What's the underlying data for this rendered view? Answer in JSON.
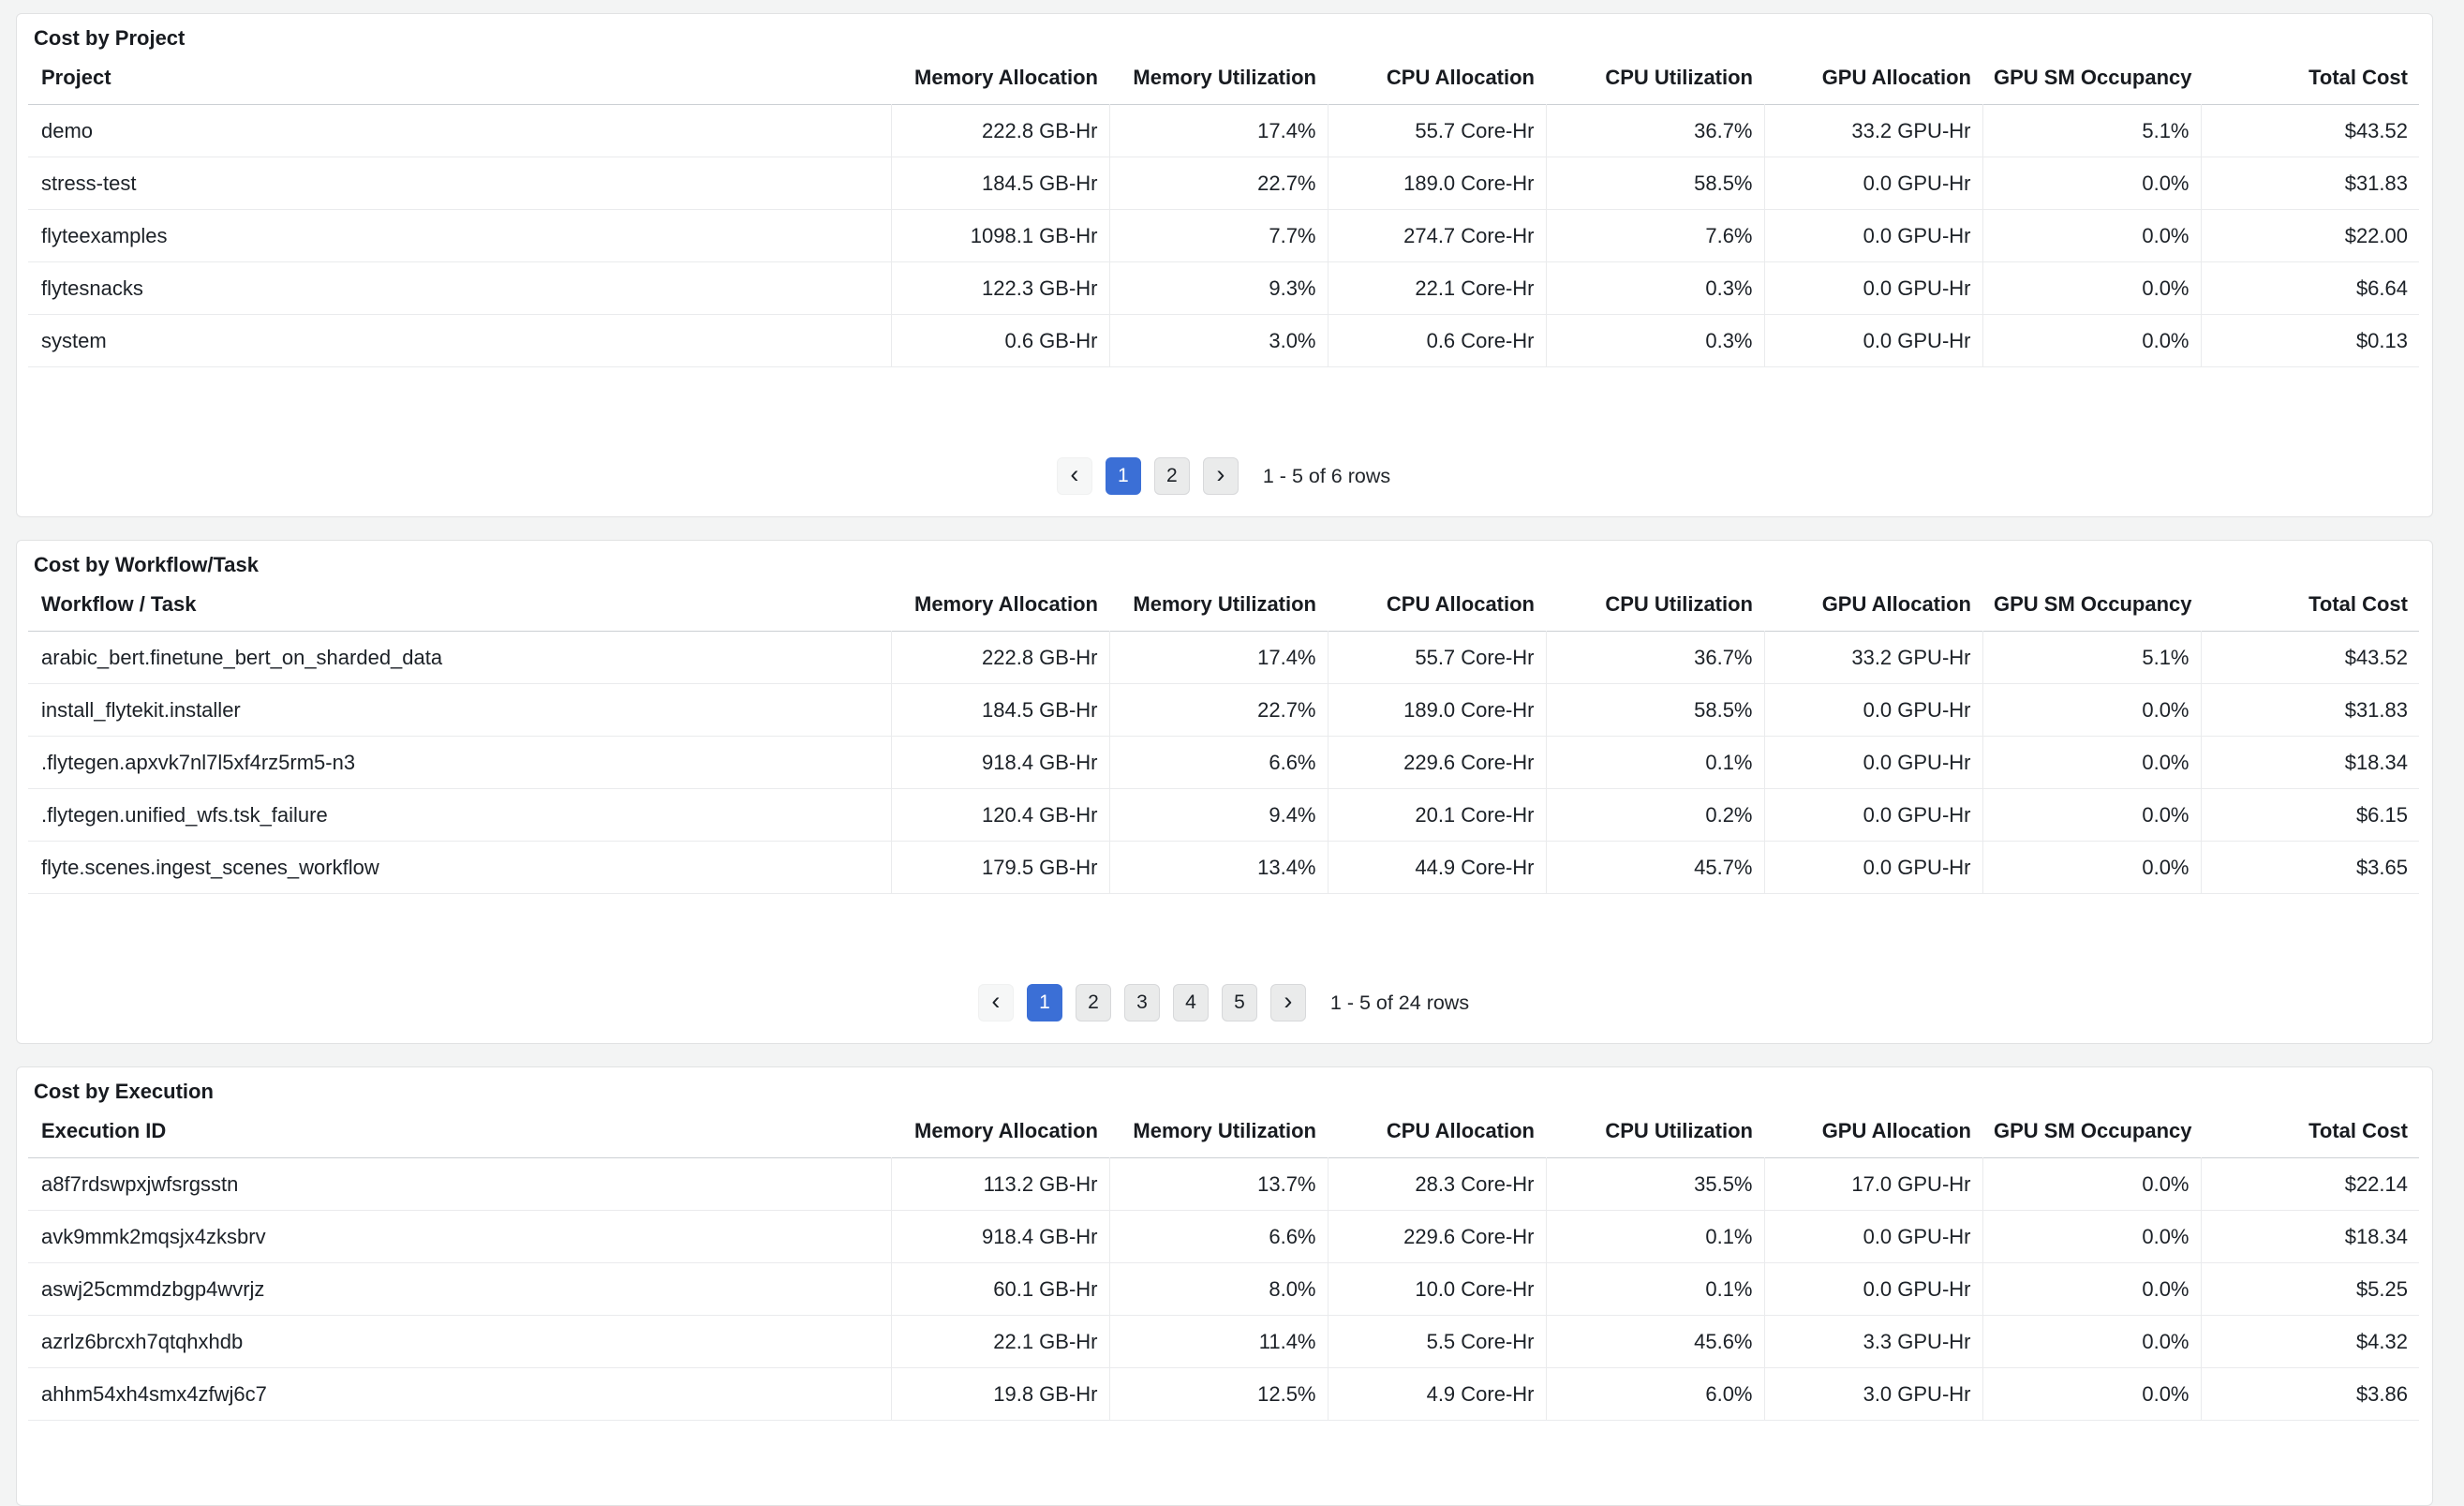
{
  "icons": {
    "prev": "‹",
    "next": "›"
  },
  "colors": {
    "page_background": "#f3f4f4",
    "card_background": "#ffffff",
    "card_border": "#e1e2e3",
    "row_border": "#eaebed",
    "header_border": "#ccd0d4",
    "active_page": "#3b6fd6",
    "text": "#1c2127"
  },
  "sections": [
    {
      "title": "Cost by Project",
      "columns": [
        "Project",
        "Memory Allocation",
        "Memory Utilization",
        "CPU Allocation",
        "CPU Utilization",
        "GPU Allocation",
        "GPU SM Occupancy",
        "Total Cost"
      ],
      "rows": [
        [
          "demo",
          "222.8 GB-Hr",
          "17.4%",
          "55.7 Core-Hr",
          "36.7%",
          "33.2 GPU-Hr",
          "5.1%",
          "$43.52"
        ],
        [
          "stress-test",
          "184.5 GB-Hr",
          "22.7%",
          "189.0 Core-Hr",
          "58.5%",
          "0.0 GPU-Hr",
          "0.0%",
          "$31.83"
        ],
        [
          "flyteexamples",
          "1098.1 GB-Hr",
          "7.7%",
          "274.7 Core-Hr",
          "7.6%",
          "0.0 GPU-Hr",
          "0.0%",
          "$22.00"
        ],
        [
          "flytesnacks",
          "122.3 GB-Hr",
          "9.3%",
          "22.1 Core-Hr",
          "0.3%",
          "0.0 GPU-Hr",
          "0.0%",
          "$6.64"
        ],
        [
          "system",
          "0.6 GB-Hr",
          "3.0%",
          "0.6 Core-Hr",
          "0.3%",
          "0.0 GPU-Hr",
          "0.0%",
          "$0.13"
        ]
      ],
      "pagination": {
        "pages": [
          "1",
          "2"
        ],
        "active_page": "1",
        "status": "1 - 5 of 6 rows"
      }
    },
    {
      "title": "Cost by Workflow/Task",
      "columns": [
        "Workflow / Task",
        "Memory Allocation",
        "Memory Utilization",
        "CPU Allocation",
        "CPU Utilization",
        "GPU Allocation",
        "GPU SM Occupancy",
        "Total Cost"
      ],
      "rows": [
        [
          "arabic_bert.finetune_bert_on_sharded_data",
          "222.8 GB-Hr",
          "17.4%",
          "55.7 Core-Hr",
          "36.7%",
          "33.2 GPU-Hr",
          "5.1%",
          "$43.52"
        ],
        [
          "install_flytekit.installer",
          "184.5 GB-Hr",
          "22.7%",
          "189.0 Core-Hr",
          "58.5%",
          "0.0 GPU-Hr",
          "0.0%",
          "$31.83"
        ],
        [
          ".flytegen.apxvk7nl7l5xf4rz5rm5-n3",
          "918.4 GB-Hr",
          "6.6%",
          "229.6 Core-Hr",
          "0.1%",
          "0.0 GPU-Hr",
          "0.0%",
          "$18.34"
        ],
        [
          ".flytegen.unified_wfs.tsk_failure",
          "120.4 GB-Hr",
          "9.4%",
          "20.1 Core-Hr",
          "0.2%",
          "0.0 GPU-Hr",
          "0.0%",
          "$6.15"
        ],
        [
          "flyte.scenes.ingest_scenes_workflow",
          "179.5 GB-Hr",
          "13.4%",
          "44.9 Core-Hr",
          "45.7%",
          "0.0 GPU-Hr",
          "0.0%",
          "$3.65"
        ]
      ],
      "pagination": {
        "pages": [
          "1",
          "2",
          "3",
          "4",
          "5"
        ],
        "active_page": "1",
        "status": "1 - 5 of 24 rows"
      }
    },
    {
      "title": "Cost by Execution",
      "columns": [
        "Execution ID",
        "Memory Allocation",
        "Memory Utilization",
        "CPU Allocation",
        "CPU Utilization",
        "GPU Allocation",
        "GPU SM Occupancy",
        "Total Cost"
      ],
      "rows": [
        [
          "a8f7rdswpxjwfsrgsstn",
          "113.2 GB-Hr",
          "13.7%",
          "28.3 Core-Hr",
          "35.5%",
          "17.0 GPU-Hr",
          "0.0%",
          "$22.14"
        ],
        [
          "avk9mmk2mqsjx4zksbrv",
          "918.4 GB-Hr",
          "6.6%",
          "229.6 Core-Hr",
          "0.1%",
          "0.0 GPU-Hr",
          "0.0%",
          "$18.34"
        ],
        [
          "aswj25cmmdzbgp4wvrjz",
          "60.1 GB-Hr",
          "8.0%",
          "10.0 Core-Hr",
          "0.1%",
          "0.0 GPU-Hr",
          "0.0%",
          "$5.25"
        ],
        [
          "azrlz6brcxh7qtqhxhdb",
          "22.1 GB-Hr",
          "11.4%",
          "5.5 Core-Hr",
          "45.6%",
          "3.3 GPU-Hr",
          "0.0%",
          "$4.32"
        ],
        [
          "ahhm54xh4smx4zfwj6c7",
          "19.8 GB-Hr",
          "12.5%",
          "4.9 Core-Hr",
          "6.0%",
          "3.0 GPU-Hr",
          "0.0%",
          "$3.86"
        ]
      ]
    }
  ]
}
